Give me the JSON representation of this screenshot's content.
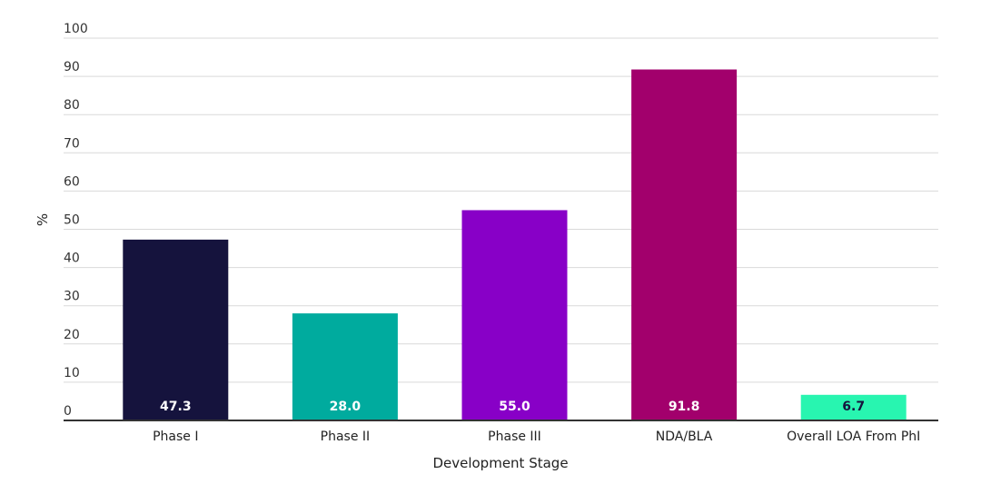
{
  "chart_data": {
    "type": "bar",
    "categories": [
      "Phase I",
      "Phase II",
      "Phase III",
      "NDA/BLA",
      "Overall LOA From PhI"
    ],
    "values": [
      47.3,
      28.0,
      55.0,
      91.8,
      6.7
    ],
    "value_labels": [
      "47.3",
      "28.0",
      "55.0",
      "91.8",
      "6.7"
    ],
    "colors": [
      "#15133d",
      "#00ab9e",
      "#8800c7",
      "#a2006c",
      "#28f5b0"
    ],
    "label_colors": [
      "#ffffff",
      "#ffffff",
      "#ffffff",
      "#ffffff",
      "#15133d"
    ],
    "title": "",
    "xlabel": "Development Stage",
    "ylabel": "%",
    "ylim": [
      0,
      100
    ],
    "yticks": [
      "0",
      "10",
      "20",
      "30",
      "40",
      "50",
      "60",
      "70",
      "80",
      "90",
      "100"
    ],
    "grid": true,
    "legend": "none"
  }
}
